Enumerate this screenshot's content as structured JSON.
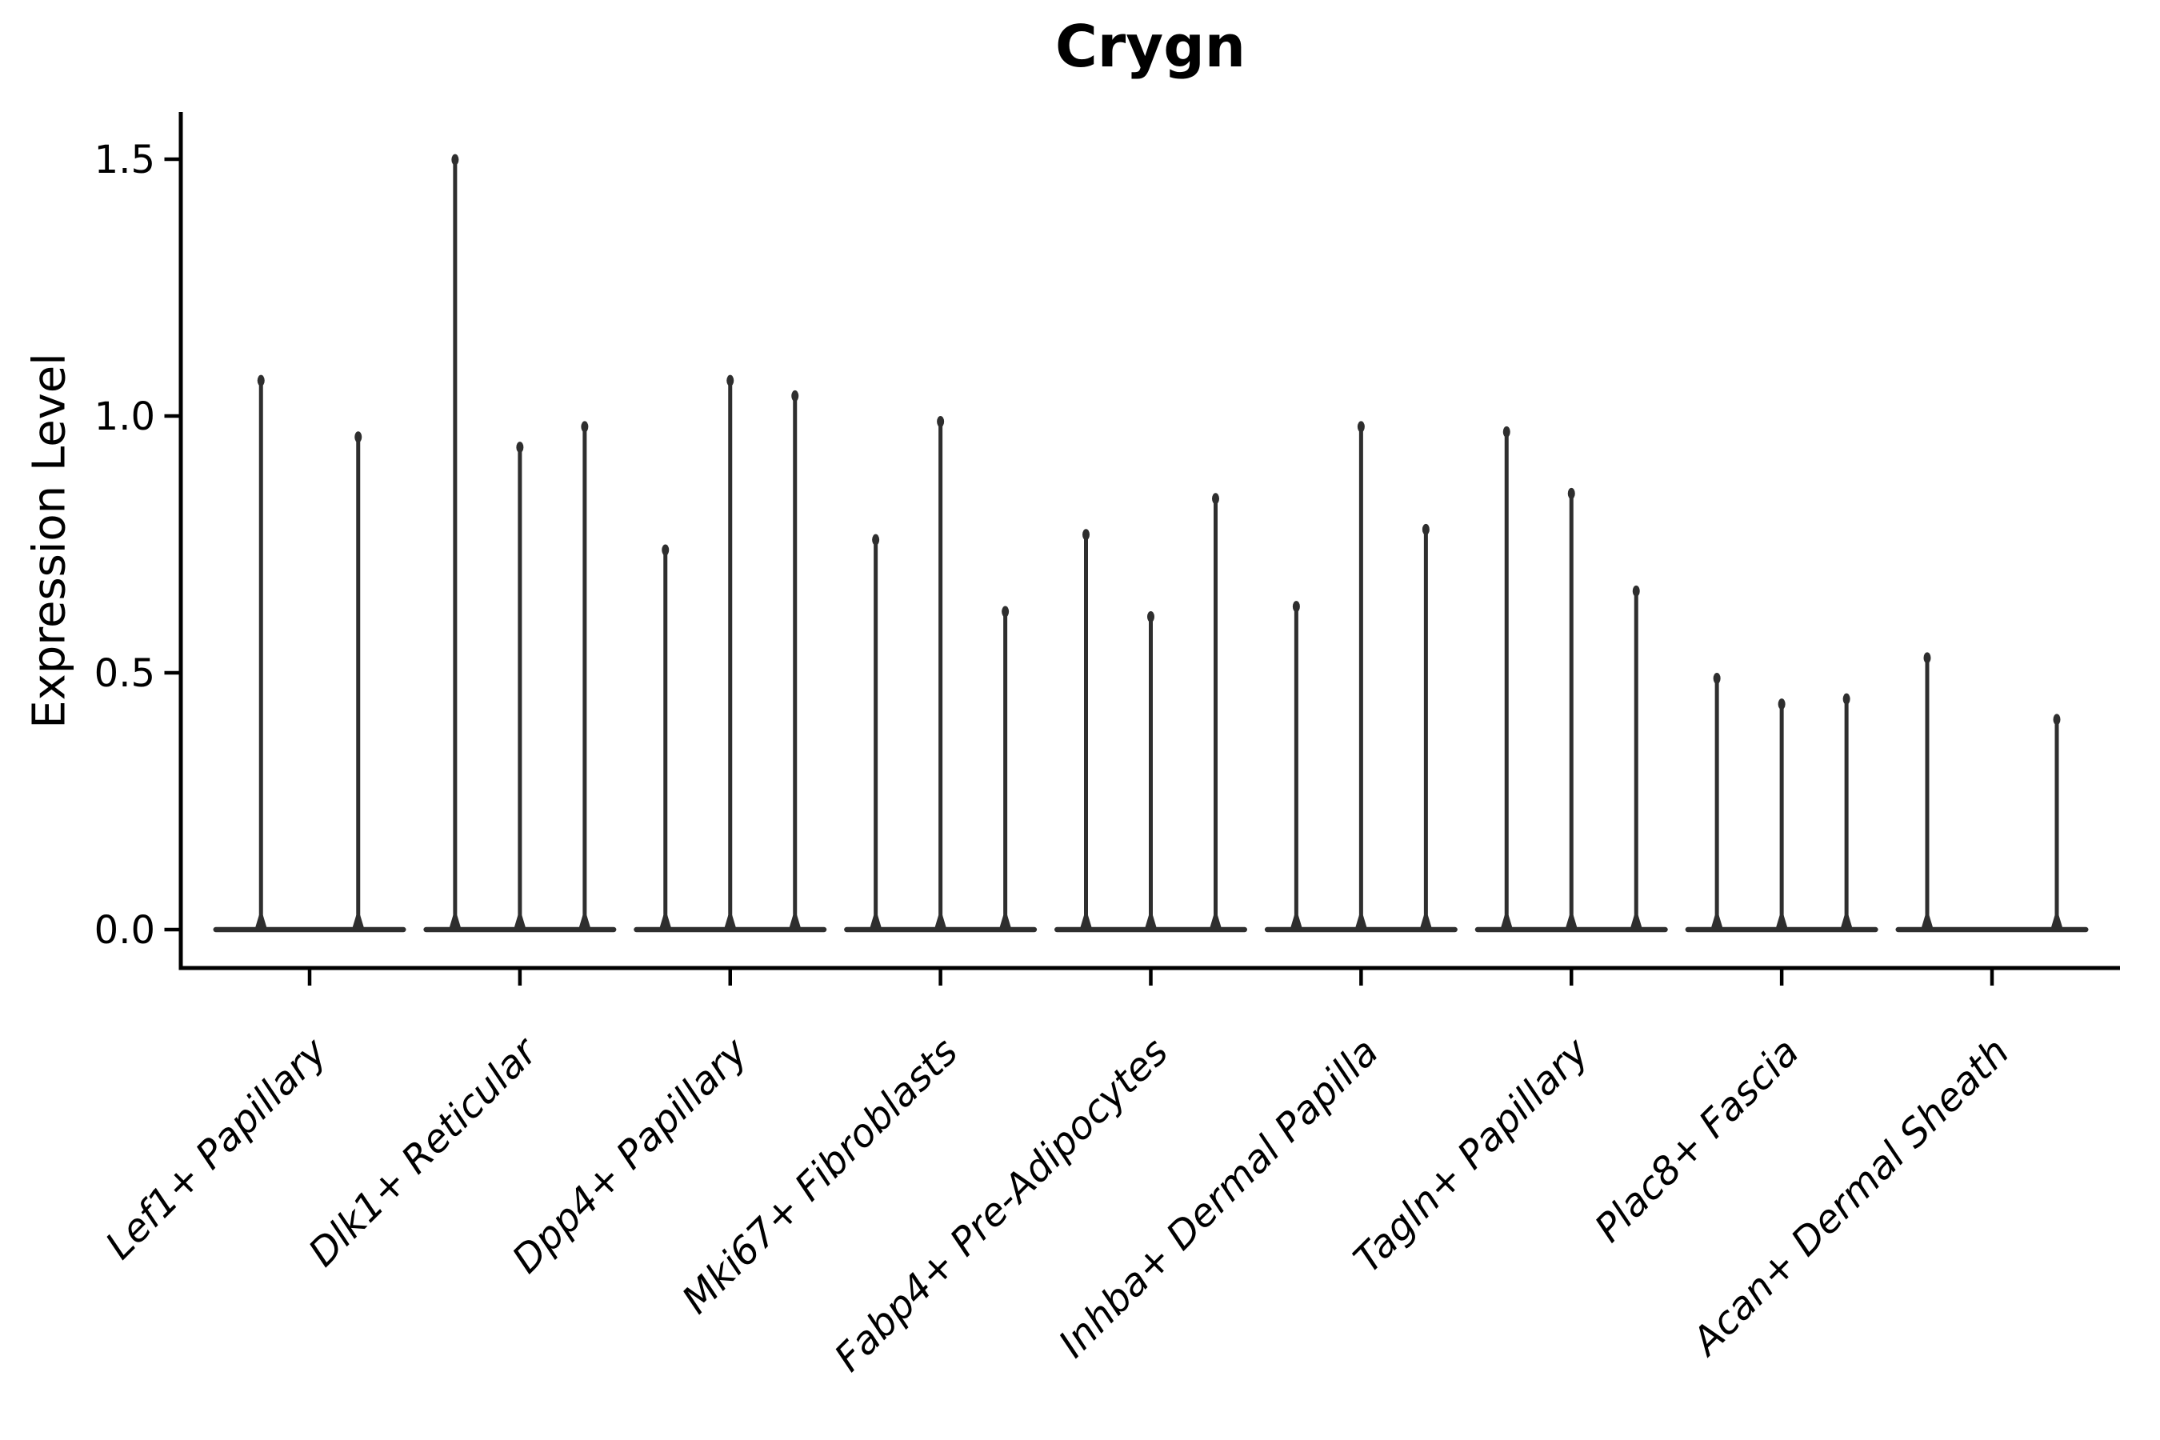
{
  "figure": {
    "title": "Crygn",
    "y_axis_label": "Expression Level"
  },
  "chart_data": {
    "type": "violin",
    "title": "Crygn",
    "xlabel": "",
    "ylabel": "Expression Level",
    "ylim": [
      0,
      1.59
    ],
    "yticks": [
      0,
      0.5,
      1.0,
      1.5
    ],
    "ytick_labels": [
      "0.0",
      "0.5",
      "1.0",
      "1.5"
    ],
    "grid": false,
    "legend": "none",
    "categories": [
      "Lef1+ Papillary",
      "Dlk1+ Reticular",
      "Dpp4+ Papillary",
      "Mki67+ Fibroblasts",
      "Fabp4+ Pre-Adipocytes",
      "Inhba+ Dermal Papilla",
      "Tagln+ Papillary",
      "Plac8+ Fascia",
      "Acan+ Dermal Sheath"
    ],
    "groups": [
      {
        "category": "Lef1+ Papillary",
        "violin_peak_values": [
          1.08,
          0.97
        ]
      },
      {
        "category": "Dlk1+ Reticular",
        "violin_peak_values": [
          1.51,
          0.95,
          0.99
        ]
      },
      {
        "category": "Dpp4+ Papillary",
        "violin_peak_values": [
          0.75,
          1.08,
          1.05
        ]
      },
      {
        "category": "Mki67+ Fibroblasts",
        "violin_peak_values": [
          0.77,
          1.0,
          0.63
        ]
      },
      {
        "category": "Fabp4+ Pre-Adipocytes",
        "violin_peak_values": [
          0.78,
          0.62,
          0.85
        ]
      },
      {
        "category": "Inhba+ Dermal Papilla",
        "violin_peak_values": [
          0.64,
          0.99,
          0.79
        ]
      },
      {
        "category": "Tagln+ Papillary",
        "violin_peak_values": [
          0.98,
          0.86,
          0.67
        ]
      },
      {
        "category": "Plac8+ Fascia",
        "violin_peak_values": [
          0.5,
          0.45,
          0.46
        ]
      },
      {
        "category": "Acan+ Dermal Sheath",
        "violin_peak_values": [
          0.54,
          0.0,
          0.42
        ]
      }
    ],
    "style": {
      "violin_color": "#2e2e2e",
      "axis_color": "#000000",
      "background": "#ffffff",
      "x_label_rotation_deg": 45,
      "x_labels_italic": true
    }
  }
}
